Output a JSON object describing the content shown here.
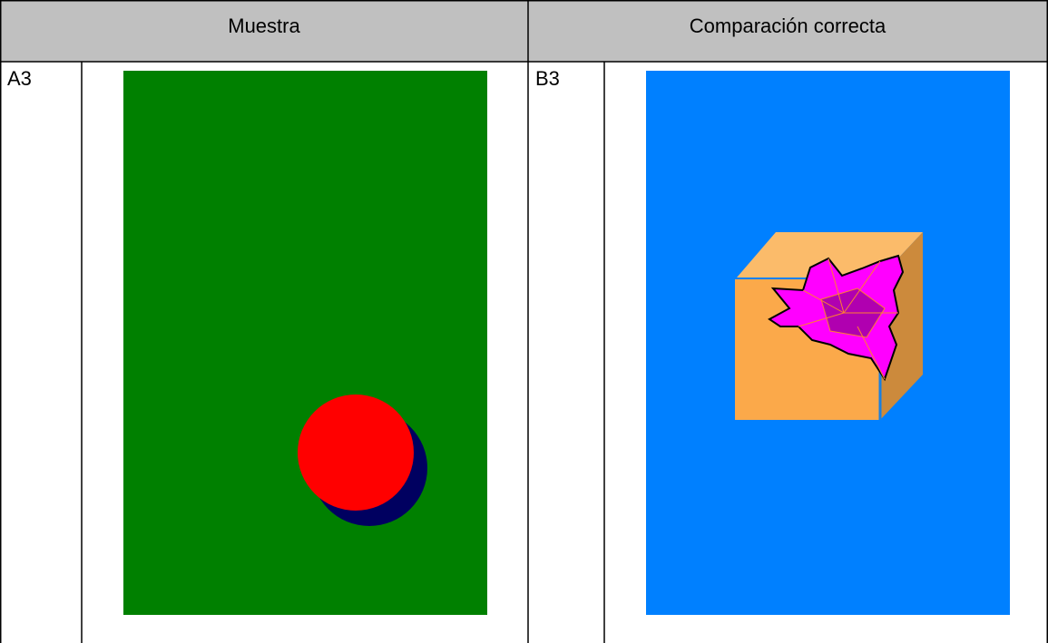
{
  "table": {
    "header": [
      "Muestra",
      "Comparación correcta"
    ],
    "rows": [
      [
        "A3",
        "B3"
      ]
    ]
  }
}
